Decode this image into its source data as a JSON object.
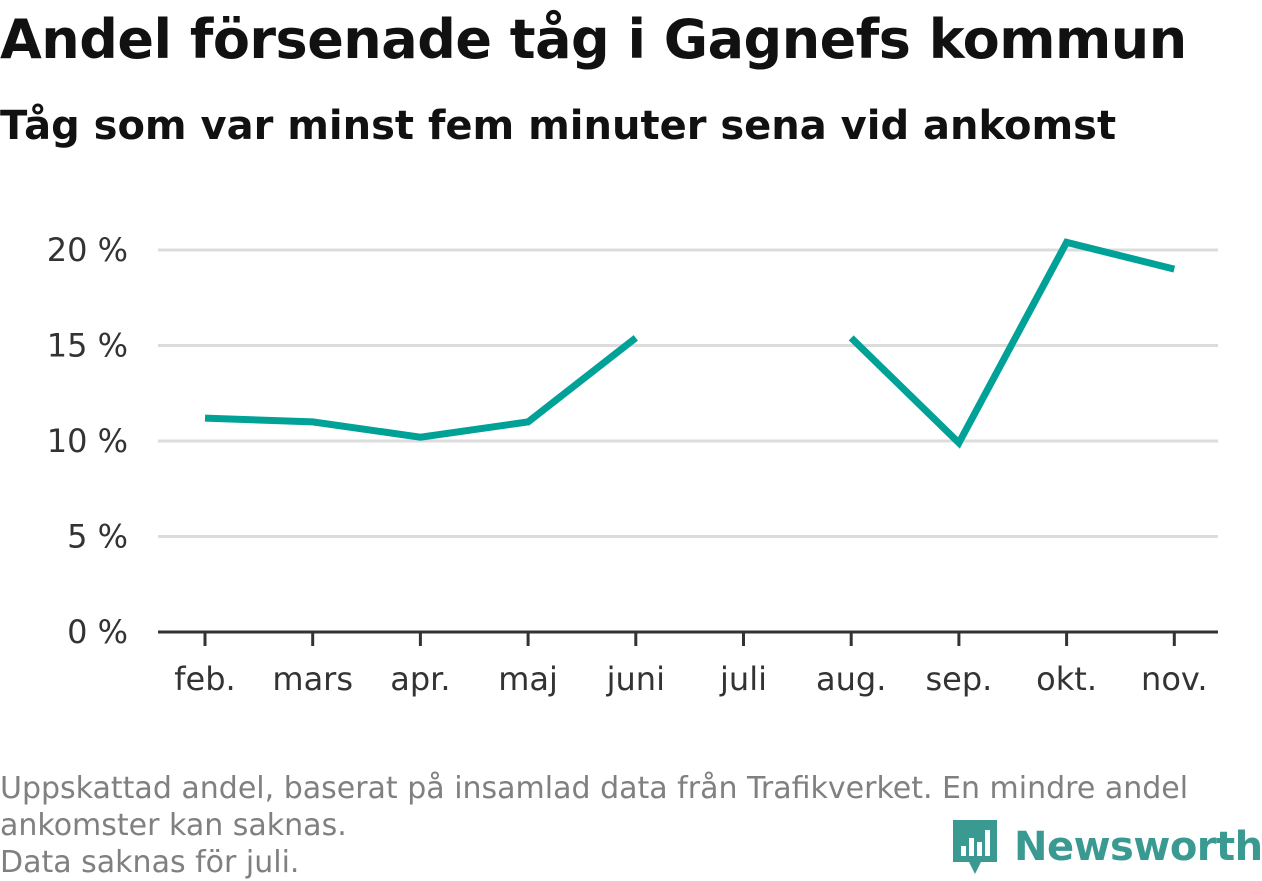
{
  "header": {
    "title": "Andel försenade tåg i Gagnefs kommun",
    "subtitle": "Tåg som var minst fem minuter sena vid ankomst"
  },
  "chart_data": {
    "type": "line",
    "title": "Andel försenade tåg i Gagnefs kommun",
    "subtitle": "Tåg som var minst fem minuter sena vid ankomst",
    "categories": [
      "feb.",
      "mars",
      "apr.",
      "maj",
      "juni",
      "juli",
      "aug.",
      "sep.",
      "okt.",
      "nov."
    ],
    "series": [
      {
        "values": [
          11.2,
          11.0,
          10.2,
          11.0,
          15.4,
          null,
          15.4,
          9.9,
          20.4,
          19.0
        ]
      }
    ],
    "ylim": [
      0,
      20
    ],
    "yticks": [
      0,
      5,
      10,
      15,
      20
    ],
    "ytick_labels": [
      "0 %",
      "5 %",
      "10 %",
      "15 %",
      "20 %"
    ],
    "xlabel": "",
    "ylabel": "",
    "grid": true,
    "legend": "none",
    "line_color": "#00a197"
  },
  "footnote": {
    "line1": "Uppskattad andel, baserat på insamlad data från Trafikverket. En mindre andel",
    "line2": "ankomster kan saknas.",
    "line3": "Data saknas för juli."
  },
  "brand": {
    "name": "Newsworthy",
    "logo_icon": "newsworthy-bar-chart-logo-icon",
    "color": "#3a9a91"
  }
}
